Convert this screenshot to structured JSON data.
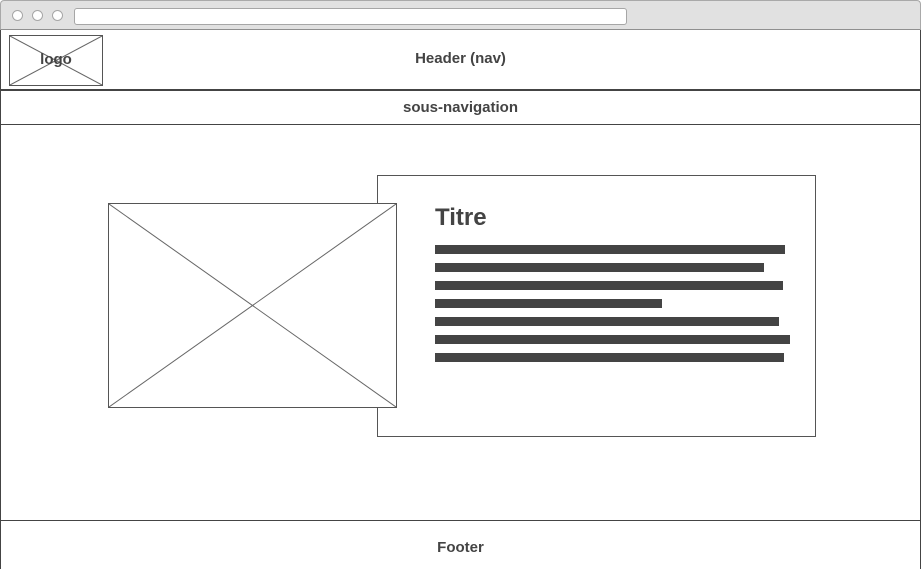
{
  "browser": {
    "address": ""
  },
  "header": {
    "logo_label": "logo",
    "nav_label": "Header (nav)"
  },
  "subnav": {
    "label": "sous-navigation"
  },
  "card": {
    "title": "Titre",
    "text_line_count": 7
  },
  "footer": {
    "label": "Footer"
  },
  "colors": {
    "text": "#444444",
    "chrome": "#e1e1e1",
    "border": "#555555"
  }
}
